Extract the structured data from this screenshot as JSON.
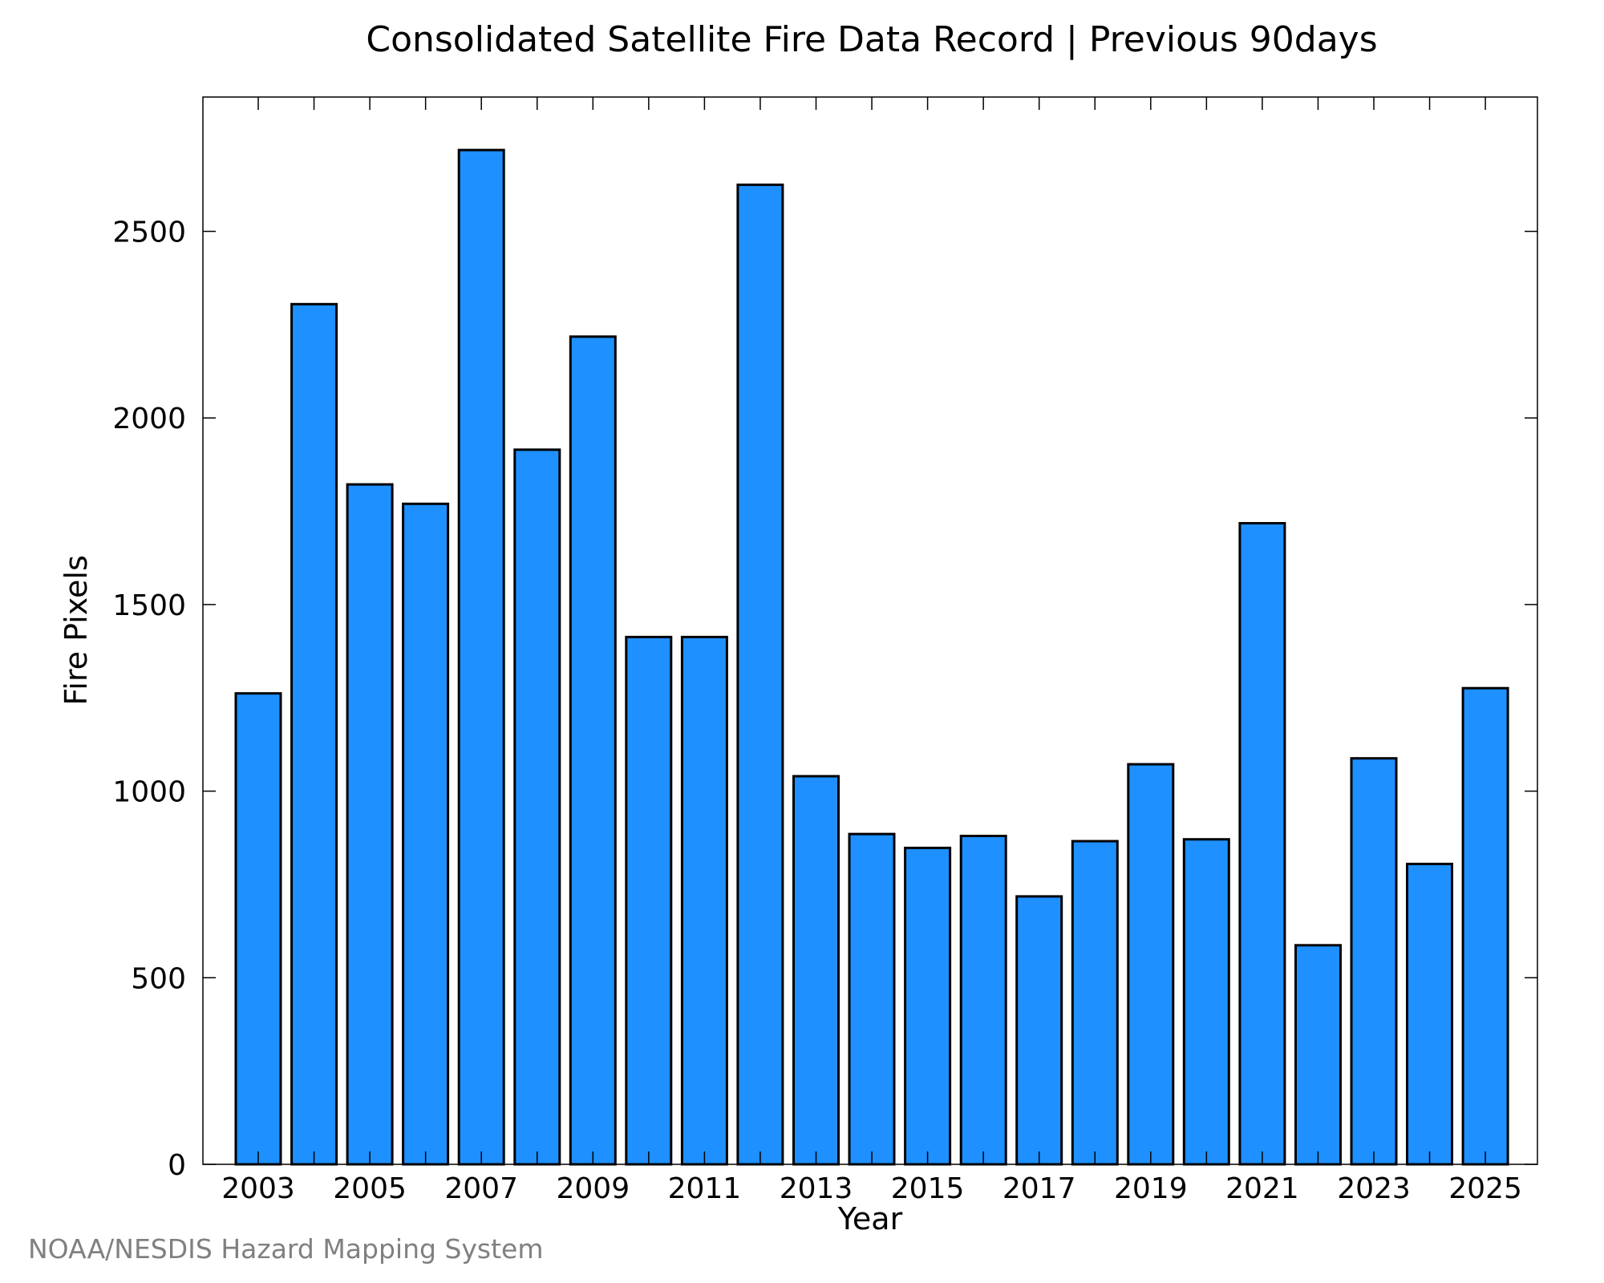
{
  "chart_data": {
    "type": "bar",
    "title": "Consolidated Satellite Fire Data Record | Previous 90days",
    "xlabel": "Year",
    "ylabel": "Fire Pixels",
    "categories": [
      "2003",
      "2004",
      "2005",
      "2006",
      "2007",
      "2008",
      "2009",
      "2010",
      "2011",
      "2012",
      "2013",
      "2014",
      "2015",
      "2016",
      "2017",
      "2018",
      "2019",
      "2020",
      "2021",
      "2022",
      "2023",
      "2024",
      "2025"
    ],
    "values": [
      1262,
      2305,
      1822,
      1770,
      2718,
      1915,
      2218,
      1413,
      1413,
      2625,
      1040,
      885,
      848,
      880,
      718,
      866,
      1072,
      871,
      1718,
      587,
      1088,
      805,
      1276
    ],
    "x_tick_labels": [
      "2003",
      "2005",
      "2007",
      "2009",
      "2011",
      "2013",
      "2015",
      "2017",
      "2019",
      "2021",
      "2023",
      "2025"
    ],
    "y_ticks": [
      0,
      500,
      1000,
      1500,
      2000,
      2500
    ],
    "ylim": [
      0,
      2860
    ],
    "grid": false,
    "legend": "none",
    "bar_color": "#1e90ff",
    "edge_color": "#000000"
  },
  "credit": "NOAA/NESDIS Hazard Mapping System"
}
